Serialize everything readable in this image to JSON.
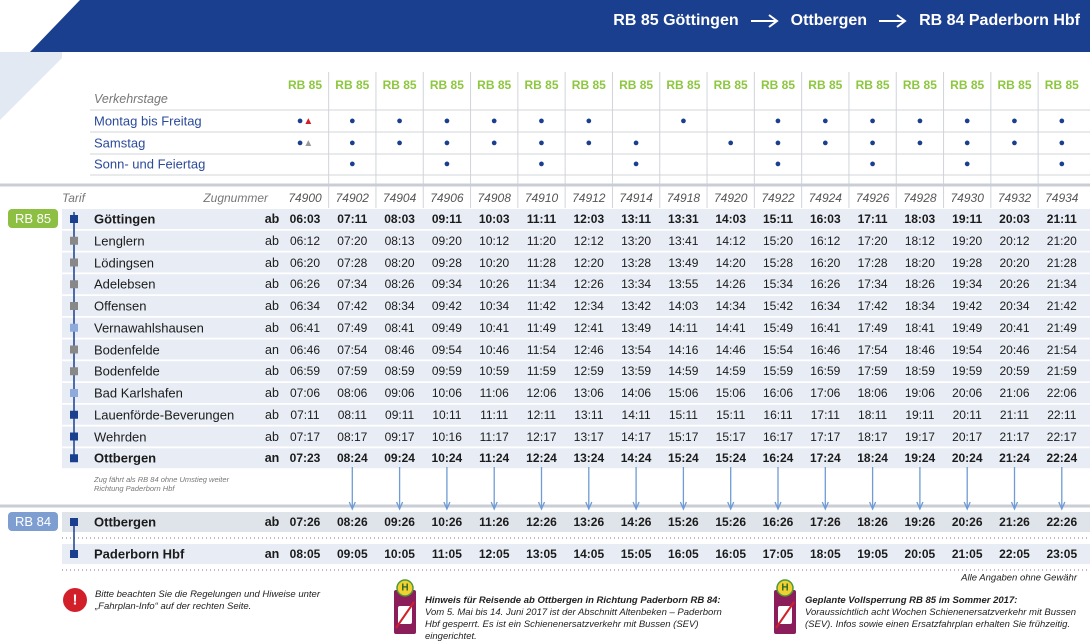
{
  "header": {
    "title_parts": [
      "RB 85 Göttingen",
      "Ottbergen",
      "RB 84 Paderborn Hbf"
    ]
  },
  "table": {
    "verkehrstage_label": "Verkehrstage",
    "tarif_label": "Tarif",
    "zugnummer_label": "Zugnummer",
    "columns": [
      {
        "line": "RB 85",
        "train": "74900"
      },
      {
        "line": "RB 85",
        "train": "74902"
      },
      {
        "line": "RB 85",
        "train": "74904"
      },
      {
        "line": "RB 85",
        "train": "74906"
      },
      {
        "line": "RB 85",
        "train": "74908"
      },
      {
        "line": "RB 85",
        "train": "74910"
      },
      {
        "line": "RB 85",
        "train": "74912"
      },
      {
        "line": "RB 85",
        "train": "74914"
      },
      {
        "line": "RB 85",
        "train": "74918"
      },
      {
        "line": "RB 85",
        "train": "74920"
      },
      {
        "line": "RB 85",
        "train": "74922"
      },
      {
        "line": "RB 85",
        "train": "74924"
      },
      {
        "line": "RB 85",
        "train": "74926"
      },
      {
        "line": "RB 85",
        "train": "74928"
      },
      {
        "line": "RB 85",
        "train": "74930"
      },
      {
        "line": "RB 85",
        "train": "74932"
      },
      {
        "line": "RB 85",
        "train": "74934"
      }
    ],
    "day_rows": [
      {
        "label": "Montag bis Freitag",
        "marks": [
          "●▲",
          "●",
          "●",
          "●",
          "●",
          "●",
          "●",
          null,
          "●",
          null,
          "●",
          "●",
          "●",
          "●",
          "●",
          "●",
          "●"
        ]
      },
      {
        "label": "Samstag",
        "marks": [
          "●▲",
          "●",
          "●",
          "●",
          "●",
          "●",
          "●",
          "●",
          null,
          "●",
          "●",
          "●",
          "●",
          "●",
          "●",
          "●",
          "●"
        ]
      },
      {
        "label": "Sonn- und Feiertag",
        "marks": [
          null,
          "●",
          null,
          "●",
          null,
          "●",
          null,
          "●",
          null,
          null,
          "●",
          null,
          "●",
          null,
          "●",
          null,
          "●"
        ]
      }
    ],
    "sections": [
      {
        "badge": "RB 85",
        "stations": [
          {
            "name": "Göttingen",
            "dir": "ab",
            "times": [
              "06:03",
              "07:11",
              "08:03",
              "09:11",
              "10:03",
              "11:11",
              "12:03",
              "13:11",
              "13:31",
              "14:03",
              "15:11",
              "16:03",
              "17:11",
              "18:03",
              "19:11",
              "20:03",
              "21:11"
            ]
          },
          {
            "name": "Lenglern",
            "dir": "ab",
            "times": [
              "06:12",
              "07:20",
              "08:13",
              "09:20",
              "10:12",
              "11:20",
              "12:12",
              "13:20",
              "13:41",
              "14:12",
              "15:20",
              "16:12",
              "17:20",
              "18:12",
              "19:20",
              "20:12",
              "21:20"
            ]
          },
          {
            "name": "Lödingsen",
            "dir": "ab",
            "times": [
              "06:20",
              "07:28",
              "08:20",
              "09:28",
              "10:20",
              "11:28",
              "12:20",
              "13:28",
              "13:49",
              "14:20",
              "15:28",
              "16:20",
              "17:28",
              "18:20",
              "19:28",
              "20:20",
              "21:28"
            ]
          },
          {
            "name": "Adelebsen",
            "dir": "ab",
            "times": [
              "06:26",
              "07:34",
              "08:26",
              "09:34",
              "10:26",
              "11:34",
              "12:26",
              "13:34",
              "13:55",
              "14:26",
              "15:34",
              "16:26",
              "17:34",
              "18:26",
              "19:34",
              "20:26",
              "21:34"
            ]
          },
          {
            "name": "Offensen",
            "dir": "ab",
            "times": [
              "06:34",
              "07:42",
              "08:34",
              "09:42",
              "10:34",
              "11:42",
              "12:34",
              "13:42",
              "14:03",
              "14:34",
              "15:42",
              "16:34",
              "17:42",
              "18:34",
              "19:42",
              "20:34",
              "21:42"
            ]
          },
          {
            "name": "Vernawahlshausen",
            "dir": "ab",
            "times": [
              "06:41",
              "07:49",
              "08:41",
              "09:49",
              "10:41",
              "11:49",
              "12:41",
              "13:49",
              "14:11",
              "14:41",
              "15:49",
              "16:41",
              "17:49",
              "18:41",
              "19:49",
              "20:41",
              "21:49"
            ]
          },
          {
            "name": "Bodenfelde",
            "dir": "an",
            "times": [
              "06:46",
              "07:54",
              "08:46",
              "09:54",
              "10:46",
              "11:54",
              "12:46",
              "13:54",
              "14:16",
              "14:46",
              "15:54",
              "16:46",
              "17:54",
              "18:46",
              "19:54",
              "20:46",
              "21:54"
            ]
          },
          {
            "name": "Bodenfelde",
            "dir": "ab",
            "times": [
              "06:59",
              "07:59",
              "08:59",
              "09:59",
              "10:59",
              "11:59",
              "12:59",
              "13:59",
              "14:59",
              "14:59",
              "15:59",
              "16:59",
              "17:59",
              "18:59",
              "19:59",
              "20:59",
              "21:59"
            ]
          },
          {
            "name": "Bad Karlshafen",
            "dir": "ab",
            "times": [
              "07:06",
              "08:06",
              "09:06",
              "10:06",
              "11:06",
              "12:06",
              "13:06",
              "14:06",
              "15:06",
              "15:06",
              "16:06",
              "17:06",
              "18:06",
              "19:06",
              "20:06",
              "21:06",
              "22:06"
            ]
          },
          {
            "name": "Lauenförde-Beverungen",
            "dir": "ab",
            "times": [
              "07:11",
              "08:11",
              "09:11",
              "10:11",
              "11:11",
              "12:11",
              "13:11",
              "14:11",
              "15:11",
              "15:11",
              "16:11",
              "17:11",
              "18:11",
              "19:11",
              "20:11",
              "21:11",
              "22:11"
            ]
          },
          {
            "name": "Wehrden",
            "dir": "ab",
            "times": [
              "07:17",
              "08:17",
              "09:17",
              "10:16",
              "11:17",
              "12:17",
              "13:17",
              "14:17",
              "15:17",
              "15:17",
              "16:17",
              "17:17",
              "18:17",
              "19:17",
              "20:17",
              "21:17",
              "22:17"
            ]
          },
          {
            "name": "Ottbergen",
            "dir": "an",
            "times": [
              "07:23",
              "08:24",
              "09:24",
              "10:24",
              "11:24",
              "12:24",
              "13:24",
              "14:24",
              "15:24",
              "15:24",
              "16:24",
              "17:24",
              "18:24",
              "19:24",
              "20:24",
              "21:24",
              "22:24"
            ]
          }
        ]
      },
      {
        "badge": "RB 84",
        "stations": [
          {
            "name": "Ottbergen",
            "dir": "ab",
            "times": [
              "07:26",
              "08:26",
              "09:26",
              "10:26",
              "11:26",
              "12:26",
              "13:26",
              "14:26",
              "15:26",
              "15:26",
              "16:26",
              "17:26",
              "18:26",
              "19:26",
              "20:26",
              "21:26",
              "22:26"
            ]
          },
          {
            "name": "Paderborn Hbf",
            "dir": "an",
            "times": [
              "08:05",
              "09:05",
              "10:05",
              "11:05",
              "12:05",
              "13:05",
              "14:05",
              "15:05",
              "16:05",
              "16:05",
              "17:05",
              "18:05",
              "19:05",
              "20:05",
              "21:05",
              "22:05",
              "23:05"
            ]
          }
        ]
      }
    ],
    "note": "Zug fährt als RB 84 ohne Umstieg weiter Richtung Paderborn Hbf"
  },
  "footer": {
    "disclaimer": "Alle Angaben ohne Gewähr",
    "notices": [
      {
        "icon": "!",
        "text": "Bitte beachten Sie die Regelungen und Hiweise unter „Fahrplan-Info“ auf der rechten Seite."
      },
      {
        "icon": "H",
        "title": "Hinweis für Reisende ab Ottbergen in Richtung Paderborn RB 84:",
        "text": "Vom 5. Mai bis 14. Juni 2017 ist der Abschnitt Altenbeken – Paderborn Hbf gesperrt. Es ist ein Schienenersatzverkehr mit Bussen (SEV) eingerichtet."
      },
      {
        "icon": "H",
        "title": "Geplante Vollsperrung RB 85 im Sommer 2017:",
        "text": "Voraussichtlich acht Wochen Schienenersatzverkehr mit Bussen (SEV). Infos sowie einen Ersatzfahrplan erhalten Sie frühzeitig."
      }
    ]
  }
}
